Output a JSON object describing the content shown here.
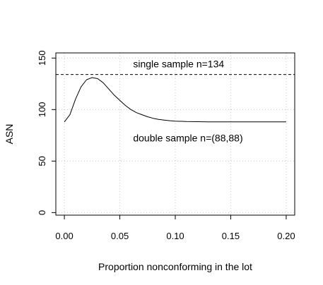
{
  "chart_data": {
    "type": "line",
    "xlabel": "Proportion nonconforming in the lot",
    "ylabel": "ASN",
    "xlim": [
      -0.0077,
      0.2077
    ],
    "ylim": [
      -2.5,
      155
    ],
    "x_ticks": [
      {
        "value": 0.0,
        "label": "0.00"
      },
      {
        "value": 0.05,
        "label": "0.05"
      },
      {
        "value": 0.1,
        "label": "0.10"
      },
      {
        "value": 0.15,
        "label": "0.15"
      },
      {
        "value": 0.2,
        "label": "0.20"
      }
    ],
    "y_ticks": [
      {
        "value": 0,
        "label": "0"
      },
      {
        "value": 50,
        "label": "50"
      },
      {
        "value": 100,
        "label": "100"
      },
      {
        "value": 150,
        "label": "150"
      }
    ],
    "grid": true,
    "reference_line": {
      "y": 134,
      "style": "dashed"
    },
    "annotations": [
      {
        "text": "single sample n=134",
        "x": 0.062,
        "y": 141
      },
      {
        "text": "double sample n=(88,88)",
        "x": 0.062,
        "y": 69
      }
    ],
    "series": [
      {
        "x": [
          0.0,
          0.005,
          0.01,
          0.015,
          0.02,
          0.025,
          0.03,
          0.035,
          0.04,
          0.045,
          0.05,
          0.055,
          0.06,
          0.065,
          0.07,
          0.075,
          0.08,
          0.085,
          0.09,
          0.095,
          0.1,
          0.11,
          0.12,
          0.13,
          0.14,
          0.15,
          0.16,
          0.17,
          0.18,
          0.19,
          0.2
        ],
        "values": [
          88,
          95,
          110,
          122,
          129,
          131,
          130,
          126,
          120,
          114,
          109,
          104,
          100,
          97,
          95,
          93,
          91.5,
          90.5,
          89.8,
          89.2,
          88.8,
          88.4,
          88.2,
          88.1,
          88,
          88,
          88,
          88,
          88,
          88,
          88
        ]
      }
    ]
  }
}
